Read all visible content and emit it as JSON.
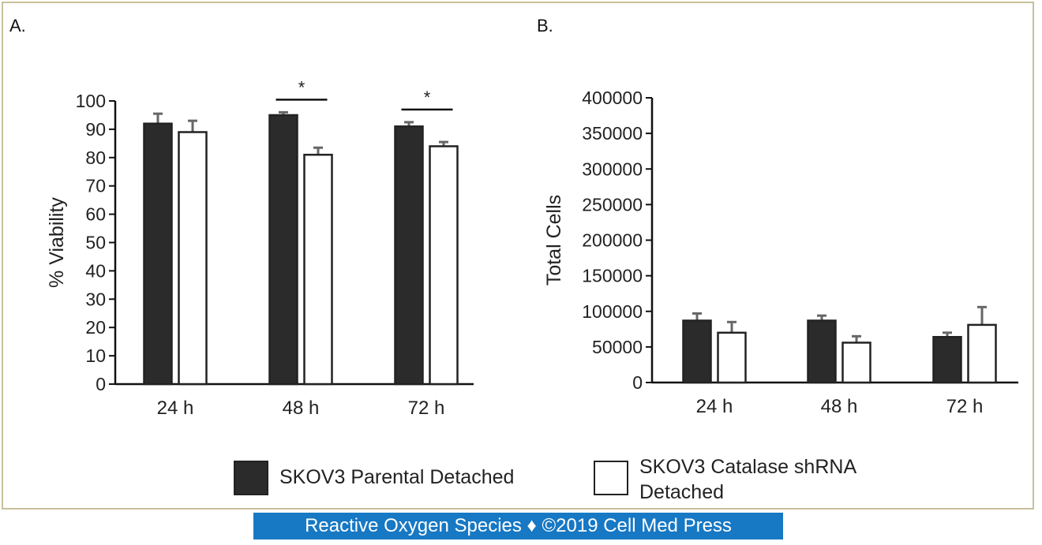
{
  "panels": {
    "a_label": "A.",
    "b_label": "B."
  },
  "legend": {
    "parental": {
      "label": "SKOV3 Parental Detached",
      "color": "#2b2b2b"
    },
    "catalase": {
      "label": "SKOV3 Catalase shRNA Detached",
      "color": "#ffffff"
    }
  },
  "footer": {
    "text": "Reactive Oxygen Species ♦ ©2019 Cell Med Press",
    "color": "#1778c4"
  },
  "chart_data": [
    {
      "type": "bar",
      "panel": "A.",
      "categories": [
        "24 h",
        "48 h",
        "72 h"
      ],
      "ylabel": "% Viability",
      "xlabel": "",
      "ylim": [
        0,
        100
      ],
      "yticks": [
        0,
        10,
        20,
        30,
        40,
        50,
        60,
        70,
        80,
        90,
        100
      ],
      "series": [
        {
          "name": "SKOV3 Parental Detached",
          "color": "#2b2b2b",
          "values": [
            92,
            95,
            91
          ],
          "errors": [
            3.5,
            1,
            1.5
          ]
        },
        {
          "name": "SKOV3 Catalase shRNA Detached",
          "color": "#ffffff",
          "values": [
            89,
            81,
            84
          ],
          "errors": [
            4,
            2.5,
            1.5
          ]
        }
      ],
      "significance": [
        {
          "category": "48 h",
          "label": "*"
        },
        {
          "category": "72 h",
          "label": "*"
        }
      ]
    },
    {
      "type": "bar",
      "panel": "B.",
      "categories": [
        "24 h",
        "48 h",
        "72 h"
      ],
      "ylabel": "Total Cells",
      "xlabel": "",
      "ylim": [
        0,
        400000
      ],
      "yticks": [
        0,
        50000,
        100000,
        150000,
        200000,
        250000,
        300000,
        350000,
        400000
      ],
      "series": [
        {
          "name": "SKOV3 Parental Detached",
          "color": "#2b2b2b",
          "values": [
            87000,
            87000,
            64000
          ],
          "errors": [
            10000,
            7000,
            6000
          ]
        },
        {
          "name": "SKOV3 Catalase shRNA Detached",
          "color": "#ffffff",
          "values": [
            70000,
            56000,
            81000
          ],
          "errors": [
            15000,
            9000,
            25000
          ]
        }
      ]
    }
  ]
}
